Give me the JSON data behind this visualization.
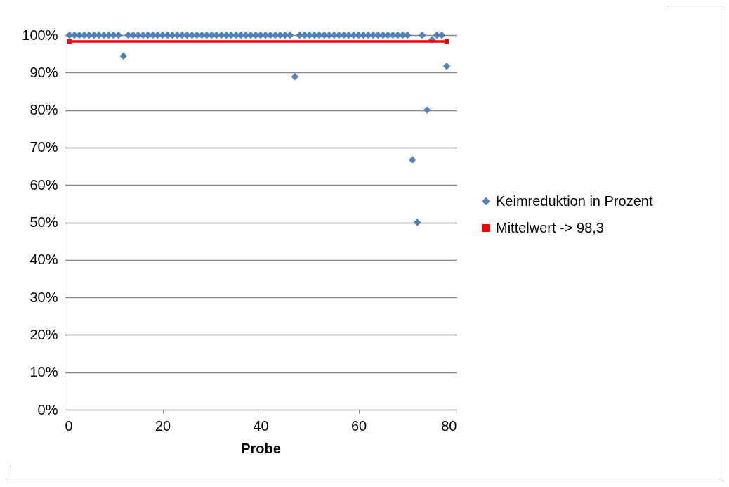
{
  "chart_data": {
    "type": "scatter",
    "xlabel": "Probe",
    "x": [
      1,
      2,
      3,
      4,
      5,
      6,
      7,
      8,
      9,
      10,
      11,
      12,
      13,
      14,
      15,
      16,
      17,
      18,
      19,
      20,
      21,
      22,
      23,
      24,
      25,
      26,
      27,
      28,
      29,
      30,
      31,
      32,
      33,
      34,
      35,
      36,
      37,
      38,
      39,
      40,
      41,
      42,
      43,
      44,
      45,
      46,
      47,
      48,
      49,
      50,
      51,
      52,
      53,
      54,
      55,
      56,
      57,
      58,
      59,
      60,
      61,
      62,
      63,
      64,
      65,
      66,
      67,
      68,
      69,
      70,
      71,
      72,
      73,
      74,
      75,
      76,
      77,
      78
    ],
    "series": [
      {
        "name": "Keimreduktion in Prozent",
        "color": "#4f81bd",
        "marker": "diamond",
        "values": [
          100,
          100,
          100,
          100,
          100,
          100,
          100,
          100,
          100,
          100,
          100,
          94.4,
          100,
          100,
          100,
          100,
          100,
          100,
          100,
          100,
          100,
          100,
          100,
          100,
          100,
          100,
          100,
          100,
          100,
          100,
          100,
          100,
          100,
          100,
          100,
          100,
          100,
          100,
          100,
          100,
          100,
          100,
          100,
          100,
          100,
          100,
          88.9,
          100,
          100,
          100,
          100,
          100,
          100,
          100,
          100,
          100,
          100,
          100,
          100,
          100,
          100,
          100,
          100,
          100,
          100,
          100,
          100,
          100,
          100,
          100,
          66.7,
          50,
          100,
          80,
          98.8,
          100,
          100,
          91.7
        ]
      },
      {
        "name": "Mittelwert -> 98,3",
        "type": "line",
        "color": "#ff0000",
        "marker": "square",
        "line_style": "solid",
        "x": [
          1,
          78
        ],
        "values": [
          98.3,
          98.3
        ]
      }
    ],
    "xlim": [
      0,
      80
    ],
    "xticks": [
      0,
      20,
      40,
      60,
      80
    ],
    "ylim": [
      0,
      100
    ],
    "yticks": [
      {
        "value": 0,
        "label": "0%"
      },
      {
        "value": 10,
        "label": "10%"
      },
      {
        "value": 20,
        "label": "20%"
      },
      {
        "value": 30,
        "label": "30%"
      },
      {
        "value": 40,
        "label": "40%"
      },
      {
        "value": 50,
        "label": "50%"
      },
      {
        "value": 60,
        "label": "60%"
      },
      {
        "value": 70,
        "label": "70%"
      },
      {
        "value": 80,
        "label": "80%"
      },
      {
        "value": 90,
        "label": "90%"
      },
      {
        "value": 100,
        "label": "100%"
      }
    ],
    "grid": "y",
    "legend": "right"
  }
}
